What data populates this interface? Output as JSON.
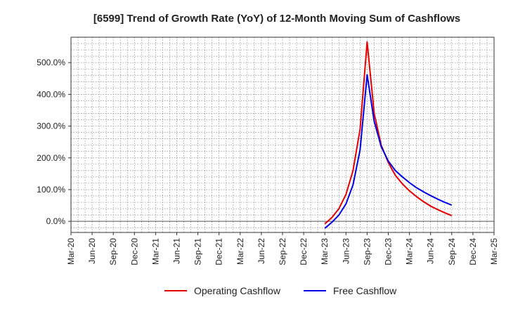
{
  "chart_data": {
    "type": "line",
    "title": "[6599]  Trend of Growth Rate (YoY) of 12-Month Moving Sum of Cashflows",
    "xlabel": "",
    "ylabel": "",
    "x_tick_labels": [
      "Mar-20",
      "Jun-20",
      "Sep-20",
      "Dec-20",
      "Mar-21",
      "Jun-21",
      "Sep-21",
      "Dec-21",
      "Mar-22",
      "Jun-22",
      "Sep-22",
      "Dec-22",
      "Mar-23",
      "Jun-23",
      "Sep-23",
      "Dec-23",
      "Mar-24",
      "Jun-24",
      "Sep-24",
      "Dec-24",
      "Mar-25"
    ],
    "y_tick_labels": [
      "0.0%",
      "100.0%",
      "200.0%",
      "300.0%",
      "400.0%",
      "500.0%"
    ],
    "y_ticks": [
      0,
      100,
      200,
      300,
      400,
      500
    ],
    "ylim": [
      -35,
      580
    ],
    "grid": true,
    "legend_position": "bottom",
    "series": [
      {
        "name": "Operating Cashflow",
        "color": "#e60000",
        "x": [
          "Mar-23",
          "Apr-23",
          "May-23",
          "Jun-23",
          "Jul-23",
          "Aug-23",
          "Sep-23",
          "Oct-23",
          "Nov-23",
          "Dec-23",
          "Jan-24",
          "Feb-24",
          "Mar-24",
          "Apr-24",
          "May-24",
          "Jun-24",
          "Jul-24",
          "Aug-24",
          "Sep-24"
        ],
        "values": [
          -8,
          12,
          40,
          85,
          160,
          290,
          565,
          340,
          240,
          185,
          145,
          118,
          96,
          78,
          62,
          48,
          37,
          27,
          18
        ]
      },
      {
        "name": "Free Cashflow",
        "color": "#0000e6",
        "x": [
          "Mar-23",
          "Apr-23",
          "May-23",
          "Jun-23",
          "Jul-23",
          "Aug-23",
          "Sep-23",
          "Oct-23",
          "Nov-23",
          "Dec-23",
          "Jan-24",
          "Feb-24",
          "Mar-24",
          "Apr-24",
          "May-24",
          "Jun-24",
          "Jul-24",
          "Aug-24",
          "Sep-24"
        ],
        "values": [
          -22,
          -3,
          20,
          55,
          115,
          225,
          462,
          315,
          235,
          190,
          160,
          140,
          122,
          106,
          93,
          81,
          70,
          60,
          51
        ]
      }
    ]
  }
}
